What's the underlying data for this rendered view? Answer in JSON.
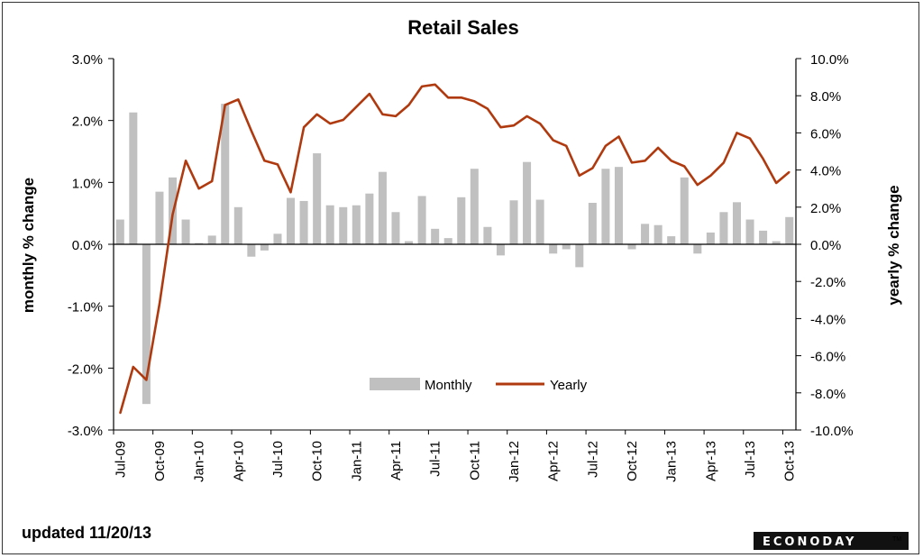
{
  "chart_data": {
    "type": "bar+line",
    "title": "Retail Sales",
    "ylabel_left": "monthly % change",
    "ylabel_right": "yearly % change",
    "ylim_left": [
      -3.0,
      3.0
    ],
    "ylim_right": [
      -10.0,
      10.0
    ],
    "left_ticks": [
      "3.0%",
      "2.0%",
      "1.0%",
      "0.0%",
      "-1.0%",
      "-2.0%",
      "-3.0%"
    ],
    "right_ticks": [
      "10.0%",
      "8.0%",
      "6.0%",
      "4.0%",
      "2.0%",
      "0.0%",
      "-2.0%",
      "-4.0%",
      "-6.0%",
      "-8.0%",
      "-10.0%"
    ],
    "x_tick_labels": [
      "Jul-09",
      "Oct-09",
      "Jan-10",
      "Apr-10",
      "Jul-10",
      "Oct-10",
      "Jan-11",
      "Apr-11",
      "Jul-11",
      "Oct-11",
      "Jan-12",
      "Apr-12",
      "Jul-12",
      "Oct-12",
      "Jan-13",
      "Apr-13",
      "Jul-13",
      "Oct-13"
    ],
    "legend_position": "bottom-center",
    "categories": [
      "Jul-09",
      "Aug-09",
      "Sep-09",
      "Oct-09",
      "Nov-09",
      "Dec-09",
      "Jan-10",
      "Feb-10",
      "Mar-10",
      "Apr-10",
      "May-10",
      "Jun-10",
      "Jul-10",
      "Aug-10",
      "Sep-10",
      "Oct-10",
      "Nov-10",
      "Dec-10",
      "Jan-11",
      "Feb-11",
      "Mar-11",
      "Apr-11",
      "May-11",
      "Jun-11",
      "Jul-11",
      "Aug-11",
      "Sep-11",
      "Oct-11",
      "Nov-11",
      "Dec-11",
      "Jan-12",
      "Feb-12",
      "Mar-12",
      "Apr-12",
      "May-12",
      "Jun-12",
      "Jul-12",
      "Aug-12",
      "Sep-12",
      "Oct-12",
      "Nov-12",
      "Dec-12",
      "Jan-13",
      "Feb-13",
      "Mar-13",
      "Apr-13",
      "May-13",
      "Jun-13",
      "Jul-13",
      "Aug-13",
      "Sep-13",
      "Oct-13"
    ],
    "series": [
      {
        "name": "Monthly",
        "type": "bar",
        "axis": "left",
        "color": "#c0c0c0",
        "values": [
          0.4,
          2.13,
          -2.58,
          0.85,
          1.08,
          0.4,
          0.02,
          0.14,
          2.27,
          0.6,
          -0.2,
          -0.1,
          0.17,
          0.75,
          0.7,
          1.47,
          0.63,
          0.6,
          0.63,
          0.82,
          1.17,
          0.52,
          0.05,
          0.78,
          0.25,
          0.1,
          0.76,
          1.22,
          0.28,
          -0.18,
          0.71,
          1.33,
          0.72,
          -0.15,
          -0.08,
          -0.37,
          0.67,
          1.22,
          1.25,
          -0.08,
          0.33,
          0.31,
          0.13,
          1.08,
          -0.15,
          0.19,
          0.52,
          0.68,
          0.4,
          0.22,
          0.05,
          0.44
        ]
      },
      {
        "name": "Yearly",
        "type": "line",
        "axis": "right",
        "color": "#b03a0f",
        "values": [
          -9.1,
          -6.6,
          -7.3,
          -3.2,
          1.6,
          4.5,
          3.0,
          3.4,
          7.5,
          7.8,
          6.1,
          4.5,
          4.3,
          2.8,
          6.3,
          7.0,
          6.5,
          6.7,
          7.4,
          8.1,
          7.0,
          6.9,
          7.5,
          8.5,
          8.6,
          7.9,
          7.9,
          7.7,
          7.3,
          6.3,
          6.4,
          6.9,
          6.5,
          5.6,
          5.3,
          3.7,
          4.1,
          5.3,
          5.8,
          4.4,
          4.5,
          5.2,
          4.5,
          4.2,
          3.2,
          3.7,
          4.4,
          6.0,
          5.7,
          4.6,
          3.3,
          3.9
        ]
      }
    ]
  },
  "footer": {
    "updated": "updated 11/20/13",
    "logo": "ECONODAY"
  },
  "colors": {
    "bar": "#c0c0c0",
    "line": "#b03a0f",
    "logo_bg": "#111111"
  }
}
